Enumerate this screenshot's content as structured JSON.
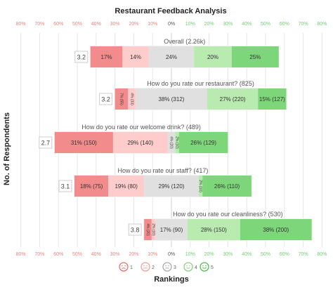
{
  "chart_data": {
    "type": "bar",
    "subtype": "diverging-stacked-bar",
    "title": "Restaurant Feedback Analysis",
    "xlabel": "Rankings",
    "ylabel": "No. of Respondents",
    "x_ticks": [
      {
        "value": -80,
        "label": "80%"
      },
      {
        "value": -70,
        "label": "70%"
      },
      {
        "value": -60,
        "label": "60%"
      },
      {
        "value": -50,
        "label": "50%"
      },
      {
        "value": -40,
        "label": "40%"
      },
      {
        "value": -30,
        "label": "30%"
      },
      {
        "value": -20,
        "label": "20%"
      },
      {
        "value": -10,
        "label": "10%"
      },
      {
        "value": 0,
        "label": "0%"
      },
      {
        "value": 10,
        "label": "10%"
      },
      {
        "value": 20,
        "label": "20%"
      },
      {
        "value": 30,
        "label": "30%"
      },
      {
        "value": 40,
        "label": "40%"
      },
      {
        "value": 50,
        "label": "50%"
      },
      {
        "value": 60,
        "label": "60%"
      },
      {
        "value": 70,
        "label": "70%"
      },
      {
        "value": 80,
        "label": "80%"
      }
    ],
    "xlim": [
      -80,
      80
    ],
    "grid": true,
    "legend_position": "bottom",
    "legend": [
      {
        "label": "1",
        "color": "#f28b8b"
      },
      {
        "label": "2",
        "color": "#f7b8b8"
      },
      {
        "label": "3",
        "color": "#bdbdbd"
      },
      {
        "label": "4",
        "color": "#9fdc8f"
      },
      {
        "label": "5",
        "color": "#5cc85c"
      }
    ],
    "colors": [
      "#f28b8b",
      "#ffcccc",
      "#e0e0e0",
      "#b9ebb0",
      "#7ed67a"
    ],
    "questions": [
      {
        "title": "Overall (2.26k)",
        "score": "3.2",
        "values": [
          17,
          14,
          24,
          20,
          25
        ],
        "labels": [
          "17%",
          "14%",
          "24%",
          "20%",
          "25%"
        ]
      },
      {
        "title": "How do you rate our restaurant? (825)",
        "score": "3.2",
        "values": [
          7,
          4,
          38,
          27,
          15
        ],
        "labels": [
          "7% (55)",
          "4% (33)",
          "38% (312)",
          "27% (220)",
          "15% (127)"
        ]
      },
      {
        "title": "How do you rate our welcome drink? (489)",
        "score": "2.7",
        "values": [
          31,
          29,
          4,
          2,
          26
        ],
        "labels": [
          "31% (150)",
          "29% (140)",
          "4% (20)",
          "2% (10)",
          "26% (129)"
        ]
      },
      {
        "title": "How do you rate our staff? (417)",
        "score": "3.1",
        "values": [
          18,
          19,
          29,
          2,
          26
        ],
        "labels": [
          "18% (75)",
          "19% (80)",
          "29% (120)",
          "2% (10)",
          "26% (110)"
        ]
      },
      {
        "title": "How do you rate our cleanliness? (530)",
        "score": "3.8",
        "values": [
          4,
          2,
          17,
          28,
          38
        ],
        "labels": [
          "4% (20)",
          "2% (10)",
          "17% (90)",
          "28% (150)",
          "38% (200)"
        ]
      }
    ]
  }
}
